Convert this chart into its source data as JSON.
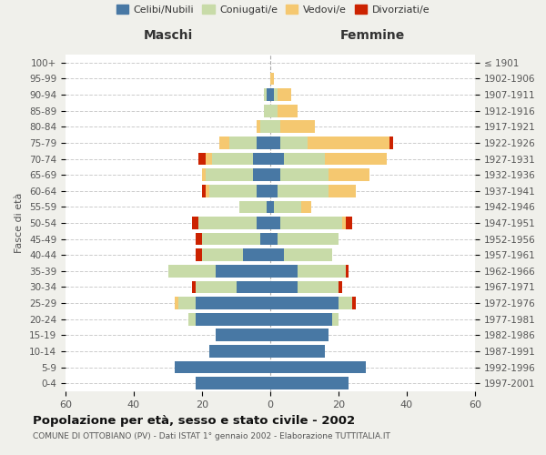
{
  "age_groups": [
    "0-4",
    "5-9",
    "10-14",
    "15-19",
    "20-24",
    "25-29",
    "30-34",
    "35-39",
    "40-44",
    "45-49",
    "50-54",
    "55-59",
    "60-64",
    "65-69",
    "70-74",
    "75-79",
    "80-84",
    "85-89",
    "90-94",
    "95-99",
    "100+"
  ],
  "birth_years": [
    "1997-2001",
    "1992-1996",
    "1987-1991",
    "1982-1986",
    "1977-1981",
    "1972-1976",
    "1967-1971",
    "1962-1966",
    "1957-1961",
    "1952-1956",
    "1947-1951",
    "1942-1946",
    "1937-1941",
    "1932-1936",
    "1927-1931",
    "1922-1926",
    "1917-1921",
    "1912-1916",
    "1907-1911",
    "1902-1906",
    "≤ 1901"
  ],
  "maschi": {
    "celibi": [
      22,
      28,
      18,
      16,
      22,
      22,
      10,
      16,
      8,
      3,
      4,
      1,
      4,
      5,
      5,
      4,
      0,
      0,
      1,
      0,
      0
    ],
    "coniugati": [
      0,
      0,
      0,
      0,
      2,
      5,
      12,
      14,
      12,
      17,
      17,
      8,
      14,
      14,
      12,
      8,
      3,
      2,
      1,
      0,
      0
    ],
    "vedovi": [
      0,
      0,
      0,
      0,
      0,
      1,
      0,
      0,
      0,
      0,
      0,
      0,
      1,
      1,
      2,
      3,
      1,
      0,
      0,
      0,
      0
    ],
    "divorziati": [
      0,
      0,
      0,
      0,
      0,
      0,
      1,
      0,
      2,
      2,
      2,
      0,
      1,
      0,
      2,
      0,
      0,
      0,
      0,
      0,
      0
    ]
  },
  "femmine": {
    "nubili": [
      23,
      28,
      16,
      17,
      18,
      20,
      8,
      8,
      4,
      2,
      3,
      1,
      2,
      3,
      4,
      3,
      0,
      0,
      1,
      0,
      0
    ],
    "coniugate": [
      0,
      0,
      0,
      0,
      2,
      4,
      12,
      14,
      14,
      18,
      18,
      8,
      15,
      14,
      12,
      8,
      3,
      2,
      1,
      0,
      0
    ],
    "vedove": [
      0,
      0,
      0,
      0,
      0,
      0,
      0,
      0,
      0,
      0,
      1,
      3,
      8,
      12,
      18,
      24,
      10,
      6,
      4,
      1,
      0
    ],
    "divorziate": [
      0,
      0,
      0,
      0,
      0,
      1,
      1,
      1,
      0,
      0,
      2,
      0,
      0,
      0,
      0,
      1,
      0,
      0,
      0,
      0,
      0
    ]
  },
  "colors": {
    "celibi_nubili": "#4878a4",
    "coniugati_e": "#c8dba8",
    "vedovi_e": "#f5c870",
    "divorziati_e": "#cc2200"
  },
  "title": "Popolazione per età, sesso e stato civile - 2002",
  "subtitle": "COMUNE DI OTTOBIANO (PV) - Dati ISTAT 1° gennaio 2002 - Elaborazione TUTTITALIA.IT",
  "xlabel_left": "Maschi",
  "xlabel_right": "Femmine",
  "ylabel_left": "Fasce di età",
  "xlim": 60,
  "bg_color": "#f0f0eb",
  "plot_bg_color": "#ffffff",
  "legend_labels": [
    "Celibi/Nubili",
    "Coniugati/e",
    "Vedovi/e",
    "Divorziati/e"
  ]
}
